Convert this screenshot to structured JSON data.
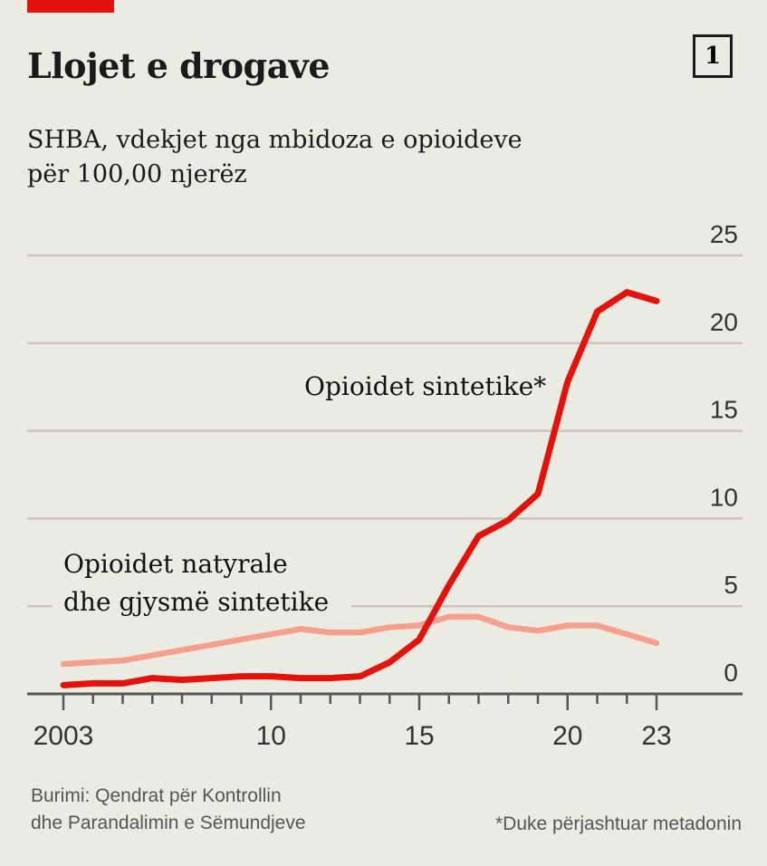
{
  "header": {
    "title": "Llojet e drogave",
    "badge": "1",
    "subtitle_line1": "SHBA, vdekjet nga mbidoza e opioideve",
    "subtitle_line2": "për 100,00 njerëz"
  },
  "footer": {
    "source_line1": "Burimi: Qendrat për Kontrollin",
    "source_line2": "dhe Parandalimin e Sëmundjeve",
    "note": "*Duke përjashtuar metadonin"
  },
  "colors": {
    "synthetic": "#e3120b",
    "natural": "#f4a08c",
    "grid": "#c9c7bd",
    "accent": "#e3120b"
  },
  "chart_data": {
    "type": "line",
    "title": "Llojet e drogave",
    "subtitle": "SHBA, vdekjet nga mbidoza e opioideve për 100,00 njerëz",
    "x": [
      2003,
      2004,
      2005,
      2006,
      2007,
      2008,
      2009,
      2010,
      2011,
      2012,
      2013,
      2014,
      2015,
      2016,
      2017,
      2018,
      2019,
      2020,
      2021,
      2022,
      2023
    ],
    "xlim": [
      2003,
      2023
    ],
    "ylim": [
      0,
      25
    ],
    "yticks": [
      0,
      5,
      10,
      15,
      20,
      25
    ],
    "xticks": [
      {
        "value": 2003,
        "label": "2003"
      },
      {
        "value": 2010,
        "label": "10"
      },
      {
        "value": 2015,
        "label": "15"
      },
      {
        "value": 2020,
        "label": "20"
      },
      {
        "value": 2023,
        "label": "23"
      }
    ],
    "grid": true,
    "series": [
      {
        "name": "Opioidet sintetike*",
        "label_line1": "Opioidet sintetike*",
        "label_line2": "",
        "color": "#e3120b",
        "values": [
          0.5,
          0.6,
          0.6,
          0.9,
          0.8,
          0.9,
          1.0,
          1.0,
          0.9,
          0.9,
          1.0,
          1.8,
          3.1,
          6.2,
          9.0,
          9.9,
          11.4,
          17.8,
          21.8,
          22.9,
          22.4
        ]
      },
      {
        "name": "Opioidet natyrale dhe gjysmë sintetike",
        "label_line1": "Opioidet natyrale",
        "label_line2": "dhe gjysmë sintetike",
        "color": "#f4a08c",
        "values": [
          1.7,
          1.8,
          1.9,
          2.2,
          2.5,
          2.8,
          3.1,
          3.4,
          3.7,
          3.5,
          3.5,
          3.8,
          3.9,
          4.4,
          4.4,
          3.8,
          3.6,
          3.9,
          3.9,
          3.4,
          2.9
        ]
      }
    ]
  }
}
